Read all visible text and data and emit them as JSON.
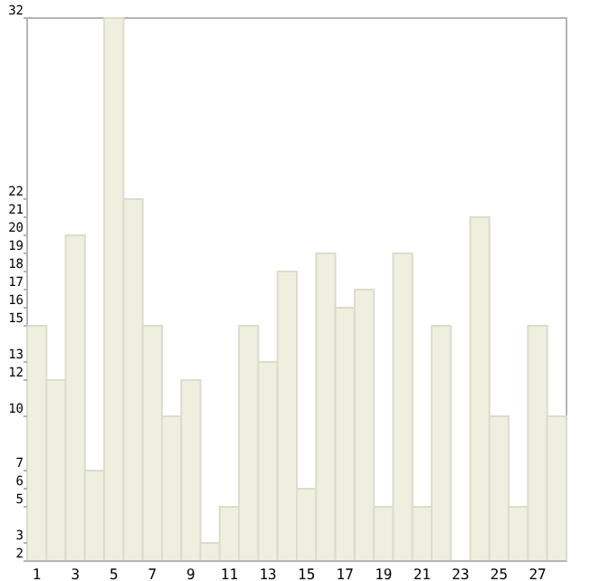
{
  "chart_data": {
    "type": "bar",
    "categories": [
      "1",
      null,
      "3",
      null,
      "5",
      null,
      "7",
      null,
      "9",
      null,
      "11",
      null,
      "13",
      null,
      "15",
      null,
      "17",
      null,
      "19",
      null,
      "21",
      null,
      "23",
      null,
      "25",
      null,
      "27",
      null
    ],
    "values": [
      15,
      12,
      20,
      7,
      32,
      22,
      15,
      10,
      12,
      3,
      5,
      15,
      13,
      18,
      6,
      19,
      16,
      17,
      5,
      19,
      5,
      15,
      2,
      21,
      10,
      5,
      15,
      10
    ],
    "color": "#efefe0",
    "ylim": [
      2,
      32
    ],
    "yticks": [
      2,
      3,
      5,
      6,
      7,
      10,
      12,
      13,
      15,
      16,
      17,
      18,
      19,
      20,
      21,
      22,
      32
    ],
    "grid": false
  }
}
